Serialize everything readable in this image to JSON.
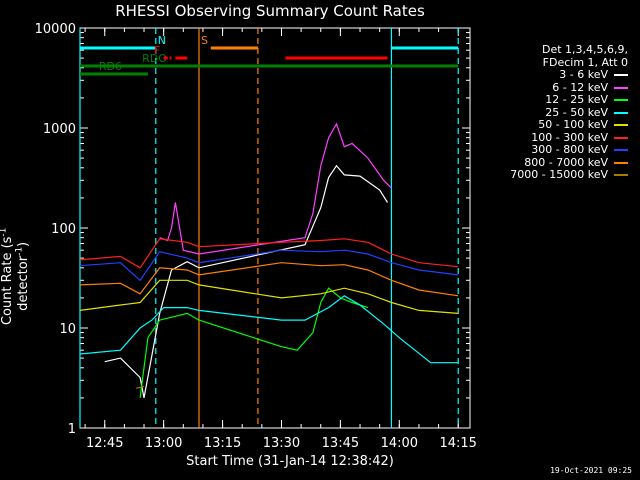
{
  "chart_data": {
    "type": "line",
    "title": "RHESSI Observing Summary Count Rates",
    "xlabel": "Start Time (31-Jan-14 12:38:42)",
    "ylabel_main": "Count Rate (s",
    "ylabel_sup1": "-1",
    "ylabel_mid": " detector",
    "ylabel_sup2": "-1",
    "ylabel_end": ")",
    "yscale": "log",
    "ylim": [
      1,
      10000
    ],
    "xlim": [
      "12:38:42",
      "14:18:00"
    ],
    "xticks": [
      "12:45",
      "13:00",
      "13:15",
      "13:30",
      "13:45",
      "14:00",
      "14:15"
    ],
    "yticks": [
      "1",
      "10",
      "100",
      "1000",
      "10000"
    ],
    "legend_header": [
      "Det 1,3,4,5,6,9,",
      "FDecim 1, Att 0"
    ],
    "series": [
      {
        "name": "3 - 6 keV",
        "color": "#ffffff",
        "points": [
          [
            "12:45",
            4.6
          ],
          [
            "12:49",
            5
          ],
          [
            "12:54",
            3.2
          ],
          [
            "12:55",
            2
          ],
          [
            "12:59",
            14
          ],
          [
            "13:02",
            38
          ],
          [
            "13:06",
            46
          ],
          [
            "13:09",
            40
          ],
          [
            "13:36",
            68
          ],
          [
            "13:40",
            160
          ],
          [
            "13:42",
            320
          ],
          [
            "13:44",
            420
          ],
          [
            "13:46",
            340
          ],
          [
            "13:50",
            330
          ],
          [
            "13:55",
            240
          ],
          [
            "13:57",
            180
          ]
        ]
      },
      {
        "name": "6 - 12 keV",
        "color": "#ff40ff",
        "points": [
          [
            "12:59",
            80
          ],
          [
            "13:01",
            75
          ],
          [
            "13:02",
            100
          ],
          [
            "13:03",
            180
          ],
          [
            "13:05",
            60
          ],
          [
            "13:09",
            55
          ],
          [
            "13:36",
            80
          ],
          [
            "13:38",
            140
          ],
          [
            "13:40",
            420
          ],
          [
            "13:42",
            800
          ],
          [
            "13:44",
            1100
          ],
          [
            "13:46",
            650
          ],
          [
            "13:48",
            700
          ],
          [
            "13:52",
            500
          ],
          [
            "13:56",
            300
          ],
          [
            "13:58",
            250
          ]
        ]
      },
      {
        "name": "12 - 25 keV",
        "color": "#00ff00",
        "points": [
          [
            "12:54",
            2
          ],
          [
            "12:56",
            8
          ],
          [
            "12:59",
            12
          ],
          [
            "13:06",
            14
          ],
          [
            "13:09",
            12
          ],
          [
            "13:30",
            6.5
          ],
          [
            "13:34",
            6
          ],
          [
            "13:38",
            9
          ],
          [
            "13:40",
            18
          ],
          [
            "13:42",
            25
          ],
          [
            "13:45",
            20
          ],
          [
            "13:48",
            18
          ],
          [
            "13:52",
            16
          ]
        ]
      },
      {
        "name": "25 - 50 keV",
        "color": "#00ffff",
        "points": [
          [
            "12:38:42",
            5.5
          ],
          [
            "12:49",
            6
          ],
          [
            "12:54",
            10
          ],
          [
            "12:57",
            12
          ],
          [
            "13:00",
            16
          ],
          [
            "13:06",
            16
          ],
          [
            "13:09",
            15
          ],
          [
            "13:30",
            12
          ],
          [
            "13:36",
            12
          ],
          [
            "13:42",
            16
          ],
          [
            "13:46",
            21
          ],
          [
            "13:50",
            17
          ],
          [
            "13:56",
            11
          ],
          [
            "14:00",
            8
          ],
          [
            "14:08",
            4.5
          ],
          [
            "14:15",
            4.5
          ]
        ]
      },
      {
        "name": "50 - 100 keV",
        "color": "#e0e000",
        "points": [
          [
            "12:38:42",
            15
          ],
          [
            "12:49",
            17
          ],
          [
            "12:54",
            18
          ],
          [
            "12:59",
            30
          ],
          [
            "13:06",
            30
          ],
          [
            "13:09",
            27
          ],
          [
            "13:30",
            20
          ],
          [
            "13:40",
            22
          ],
          [
            "13:46",
            25
          ],
          [
            "13:52",
            22
          ],
          [
            "13:58",
            18
          ],
          [
            "14:05",
            15
          ],
          [
            "14:15",
            14
          ]
        ]
      },
      {
        "name": "100 - 300 keV",
        "color": "#ff2020",
        "points": [
          [
            "12:38:42",
            48
          ],
          [
            "12:49",
            52
          ],
          [
            "12:54",
            40
          ],
          [
            "12:59",
            78
          ],
          [
            "13:06",
            72
          ],
          [
            "13:09",
            65
          ],
          [
            "13:30",
            72
          ],
          [
            "13:40",
            75
          ],
          [
            "13:46",
            78
          ],
          [
            "13:52",
            72
          ],
          [
            "13:58",
            55
          ],
          [
            "14:05",
            45
          ],
          [
            "14:15",
            41
          ]
        ]
      },
      {
        "name": "300 - 800 keV",
        "color": "#2040ff",
        "points": [
          [
            "12:38:42",
            42
          ],
          [
            "12:49",
            45
          ],
          [
            "12:54",
            30
          ],
          [
            "12:59",
            58
          ],
          [
            "13:06",
            50
          ],
          [
            "13:09",
            45
          ],
          [
            "13:30",
            60
          ],
          [
            "13:40",
            58
          ],
          [
            "13:46",
            60
          ],
          [
            "13:52",
            55
          ],
          [
            "13:58",
            45
          ],
          [
            "14:05",
            38
          ],
          [
            "14:15",
            34
          ]
        ]
      },
      {
        "name": "800 - 7000 keV",
        "color": "#ff8000",
        "points": [
          [
            "12:38:42",
            27
          ],
          [
            "12:49",
            28
          ],
          [
            "12:54",
            22
          ],
          [
            "12:59",
            40
          ],
          [
            "13:06",
            38
          ],
          [
            "13:09",
            34
          ],
          [
            "13:30",
            45
          ],
          [
            "13:40",
            42
          ],
          [
            "13:46",
            43
          ],
          [
            "13:52",
            38
          ],
          [
            "13:58",
            30
          ],
          [
            "14:05",
            24
          ],
          [
            "14:15",
            21
          ]
        ]
      },
      {
        "name": "7000 - 15000 keV",
        "color": "#a08000",
        "points": [
          [
            "12:53",
            2.5
          ],
          [
            "12:55",
            2.6
          ]
        ]
      }
    ],
    "flag_bars": [
      {
        "label": "N",
        "color": "#00ffff",
        "segments": [
          [
            "12:38:42",
            "12:58"
          ],
          [
            "13:58",
            "14:15"
          ]
        ]
      },
      {
        "label": "RDO",
        "color": "#008000",
        "segments": [
          [
            "12:38:42",
            "14:15"
          ]
        ]
      },
      {
        "label": "RD6",
        "color": "#008000",
        "segments": [
          [
            "12:38:42",
            "12:56"
          ]
        ]
      },
      {
        "label": "F",
        "color": "#ff0000",
        "segments": [
          [
            "13:00",
            "13:02"
          ],
          [
            "13:03",
            "13:06"
          ],
          [
            "13:31",
            "13:57"
          ]
        ]
      },
      {
        "label": "S",
        "color": "#ff8000",
        "segments": [
          [
            "13:12",
            "13:24"
          ]
        ]
      }
    ],
    "vertical_markers": [
      {
        "color": "#00ffff",
        "style": "solid",
        "time": "12:38:42"
      },
      {
        "color": "#00ffff",
        "style": "dashed",
        "time": "12:58"
      },
      {
        "color": "#ff8000",
        "style": "solid",
        "time": "13:09"
      },
      {
        "color": "#ff8000",
        "style": "dashed",
        "time": "13:24"
      },
      {
        "color": "#00ffff",
        "style": "solid",
        "time": "13:58"
      },
      {
        "color": "#00ffff",
        "style": "dashed",
        "time": "14:15"
      }
    ],
    "gap": [
      "13:24",
      "13:30"
    ],
    "grid": false,
    "legend_position": "right"
  },
  "footer": {
    "timestamp": "19-Oct-2021 09:25"
  }
}
